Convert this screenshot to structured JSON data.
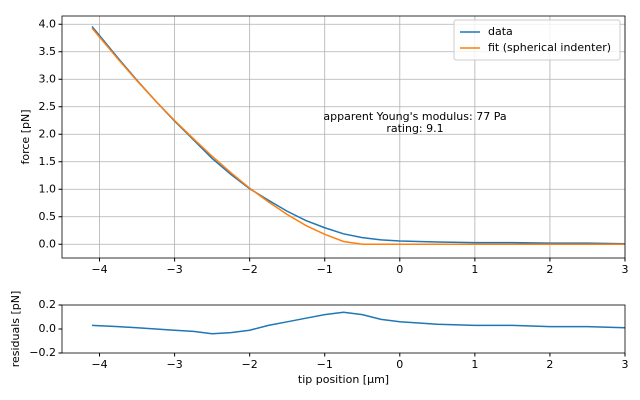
{
  "chart_data": [
    {
      "type": "line",
      "ylabel": "force [pN]",
      "annotation": [
        "apparent Young's modulus: 77 Pa",
        "rating: 9.1"
      ],
      "x": [
        -4.1,
        -3.75,
        -3.5,
        -3.25,
        -3,
        -2.75,
        -2.5,
        -2.25,
        -2,
        -1.75,
        -1.5,
        -1.25,
        -1,
        -0.75,
        -0.5,
        -0.25,
        0,
        0.5,
        1,
        1.5,
        2,
        2.5,
        3
      ],
      "series": [
        {
          "name": "data",
          "color": "#1f77b4",
          "values": [
            3.96,
            3.38,
            2.98,
            2.6,
            2.24,
            1.9,
            1.56,
            1.27,
            1.01,
            0.8,
            0.6,
            0.43,
            0.3,
            0.19,
            0.12,
            0.08,
            0.06,
            0.04,
            0.03,
            0.03,
            0.02,
            0.02,
            0.01
          ]
        },
        {
          "name": "fit (spherical indenter)",
          "color": "#ff7f0e",
          "values": [
            3.93,
            3.36,
            2.97,
            2.6,
            2.25,
            1.92,
            1.6,
            1.3,
            1.02,
            0.77,
            0.54,
            0.34,
            0.18,
            0.05,
            0,
            0,
            0,
            0,
            0,
            0,
            0,
            0,
            0
          ]
        }
      ],
      "xlim": [
        -4.5,
        3
      ],
      "ylim": [
        -0.25,
        4.15
      ],
      "xticks": [
        {
          "value": -4,
          "label": "−4"
        },
        {
          "value": -3,
          "label": "−3"
        },
        {
          "value": -2,
          "label": "−2"
        },
        {
          "value": -1,
          "label": "−1"
        },
        0,
        1,
        2,
        3
      ],
      "yticks": [
        {
          "value": 0,
          "label": "0.0"
        },
        0.5,
        {
          "value": 1,
          "label": "1.0"
        },
        1.5,
        {
          "value": 2,
          "label": "2.0"
        },
        2.5,
        {
          "value": 3,
          "label": "3.0"
        },
        3.5,
        {
          "value": 4,
          "label": "4.0"
        }
      ],
      "grid": true,
      "legend": "upper right"
    },
    {
      "type": "line",
      "ylabel": "residuals [pN]",
      "xlabel": "tip position [µm]",
      "x": [
        -4.1,
        -3.75,
        -3.5,
        -3.25,
        -3,
        -2.75,
        -2.5,
        -2.25,
        -2,
        -1.75,
        -1.5,
        -1.25,
        -1,
        -0.75,
        -0.5,
        -0.25,
        0,
        0.5,
        1,
        1.5,
        2,
        2.5,
        3
      ],
      "color": "#1f77b4",
      "values": [
        0.03,
        0.02,
        0.01,
        0.0,
        -0.01,
        -0.02,
        -0.04,
        -0.03,
        -0.01,
        0.03,
        0.06,
        0.09,
        0.12,
        0.14,
        0.12,
        0.08,
        0.06,
        0.04,
        0.03,
        0.03,
        0.02,
        0.02,
        0.01
      ],
      "xlim": [
        -4.5,
        3
      ],
      "ylim": [
        -0.2,
        0.2
      ],
      "xticks": [
        {
          "value": -4,
          "label": "−4"
        },
        {
          "value": -3,
          "label": "−3"
        },
        {
          "value": -2,
          "label": "−2"
        },
        {
          "value": -1,
          "label": "−1"
        },
        0,
        1,
        2,
        3
      ],
      "yticks": [
        {
          "value": -0.2,
          "label": "−0.2"
        },
        {
          "value": 0,
          "label": "0.0"
        },
        0.2
      ],
      "grid": false
    }
  ]
}
